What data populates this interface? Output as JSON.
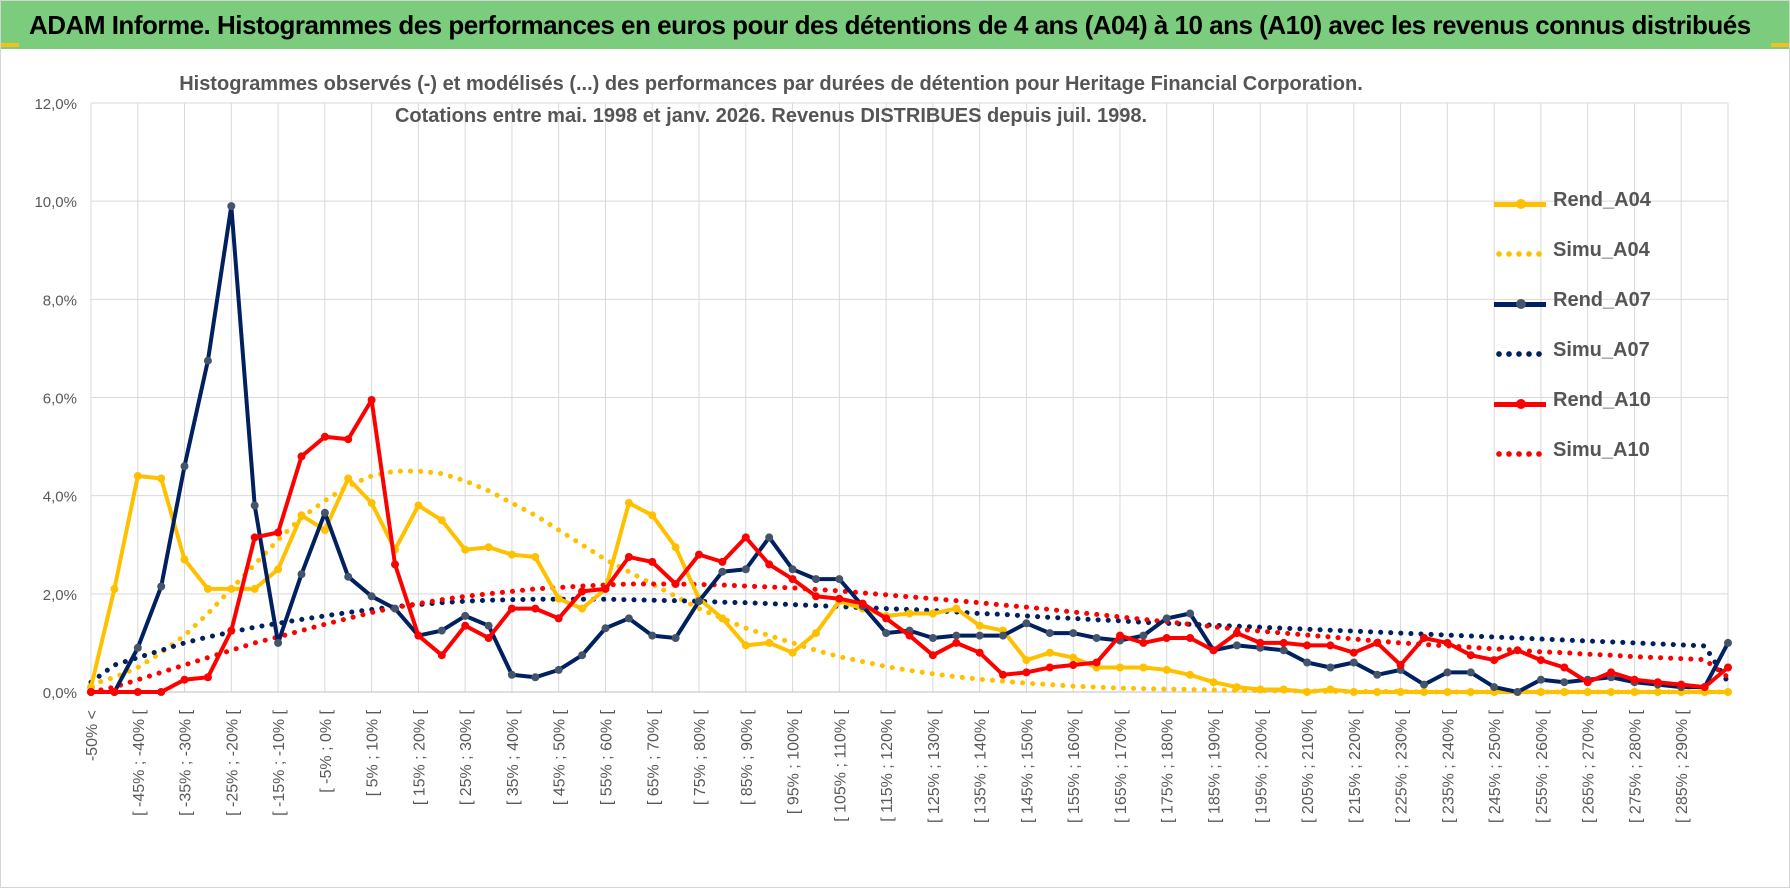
{
  "header": {
    "title": "ADAM Informe. Histogrammes des performances en euros pour des détentions de 4 ans (A04) à 10 ans (A10) avec les revenus connus distribués"
  },
  "chart_data": {
    "type": "line",
    "title_line1": "Histogrammes observés (-) et modélisés (...) des performances par durées de détention pour Heritage Financial Corporation.",
    "title_line2": "Cotations entre mai. 1998 et janv. 2026. Revenus DISTRIBUES depuis juil. 1998.",
    "ylim": [
      0,
      12
    ],
    "yticks": [
      "0,0%",
      "2,0%",
      "4,0%",
      "6,0%",
      "8,0%",
      "10,0%",
      "12,0%"
    ],
    "grid": true,
    "legend_position": "right",
    "x_labels": [
      "-50% <",
      "[ -45% ; -40% [",
      "[ -35% ; -30% [",
      "[ -25% ; -20% [",
      "[ -15% ; -10% [",
      "[ -5% ; 0% [",
      "[ 5% ; 10% [",
      "[ 15% ; 20% [",
      "[ 25% ; 30% [",
      "[ 35% ; 40% [",
      "[ 45% ; 50% [",
      "[ 55% ; 60% [",
      "[ 65% ; 70% [",
      "[ 75% ; 80% [",
      "[ 85% ; 90% [",
      "[ 95% ; 100% [",
      "[ 105% ; 110% [",
      "[ 115% ; 120% [",
      "[ 125% ; 130% [",
      "[ 135% ; 140% [",
      "[ 145% ; 150% [",
      "[ 155% ; 160% [",
      "[ 165% ; 170% [",
      "[ 175% ; 180% [",
      "[ 185% ; 190% [",
      "[ 195% ; 200% [",
      "[ 205% ; 210% [",
      "[ 215% ; 220% [",
      "[ 225% ; 230% [",
      "[ 235% ; 240% [",
      "[ 245% ; 250% [",
      "[ 255% ; 260% [",
      "[ 265% ; 270% [",
      "[ 275% ; 280% [",
      "[ 285% ; 290% ["
    ],
    "series": [
      {
        "name": "Rend_A04",
        "style": "solid",
        "color": "#ffc000",
        "values": [
          0.1,
          2.1,
          4.4,
          4.35,
          2.7,
          2.1,
          2.1,
          2.1,
          2.5,
          3.6,
          3.3,
          4.35,
          3.85,
          2.9,
          3.8,
          3.5,
          2.9,
          2.95,
          2.8,
          2.75,
          1.9,
          1.7,
          2.1,
          3.85,
          3.6,
          2.95,
          1.9,
          1.5,
          0.95,
          1.0,
          0.8,
          1.2,
          1.85,
          1.7,
          1.55,
          1.6,
          1.6,
          1.7,
          1.35,
          1.25,
          0.65,
          0.8,
          0.7,
          0.5,
          0.5,
          0.5,
          0.45,
          0.35,
          0.2,
          0.1,
          0.05,
          0.05,
          0.0,
          0.05,
          0.0,
          0.0,
          0.0,
          0.0,
          0.0,
          0.0,
          0.0,
          0.0,
          0.0,
          0.0,
          0.0,
          0.0,
          0.0,
          0.0,
          0.0,
          0.0,
          0.0
        ]
      },
      {
        "name": "Simu_A04",
        "style": "dotted",
        "color": "#ffc000",
        "values": [
          0.15,
          0.3,
          0.5,
          0.8,
          1.15,
          1.6,
          2.1,
          2.6,
          3.1,
          3.55,
          3.9,
          4.2,
          4.4,
          4.5,
          4.5,
          4.45,
          4.3,
          4.1,
          3.85,
          3.6,
          3.3,
          3.0,
          2.7,
          2.45,
          2.2,
          1.95,
          1.7,
          1.5,
          1.3,
          1.15,
          1.0,
          0.85,
          0.72,
          0.62,
          0.52,
          0.44,
          0.37,
          0.31,
          0.26,
          0.22,
          0.18,
          0.15,
          0.12,
          0.1,
          0.08,
          0.07,
          0.06,
          0.05,
          0.04,
          0.03,
          0.03,
          0.02,
          0.02,
          0.01,
          0.01,
          0.01,
          0.01,
          0.0,
          0.0,
          0.0,
          0.0,
          0.0,
          0.0,
          0.0,
          0.0,
          0.0,
          0.0,
          0.0,
          0.0,
          0.0,
          0.0
        ]
      },
      {
        "name": "Rend_A07",
        "style": "solid",
        "color": "#002060",
        "values": [
          0.0,
          0.0,
          0.9,
          2.15,
          4.6,
          6.75,
          9.9,
          3.8,
          1.0,
          2.4,
          3.65,
          2.35,
          1.95,
          1.7,
          1.15,
          1.25,
          1.55,
          1.35,
          0.35,
          0.3,
          0.45,
          0.75,
          1.3,
          1.5,
          1.15,
          1.1,
          1.85,
          2.45,
          2.5,
          3.15,
          2.5,
          2.3,
          2.3,
          1.75,
          1.2,
          1.25,
          1.1,
          1.15,
          1.15,
          1.15,
          1.4,
          1.2,
          1.2,
          1.1,
          1.05,
          1.15,
          1.5,
          1.6,
          0.85,
          0.95,
          0.9,
          0.85,
          0.6,
          0.5,
          0.6,
          0.35,
          0.45,
          0.15,
          0.4,
          0.4,
          0.1,
          0.0,
          0.25,
          0.2,
          0.25,
          0.3,
          0.2,
          0.15,
          0.1,
          0.1,
          1.0
        ]
      },
      {
        "name": "Simu_A07",
        "style": "dotted",
        "color": "#002060",
        "values": [
          0.2,
          0.55,
          0.7,
          0.85,
          1.0,
          1.12,
          1.22,
          1.32,
          1.4,
          1.48,
          1.55,
          1.62,
          1.68,
          1.74,
          1.78,
          1.82,
          1.85,
          1.87,
          1.88,
          1.89,
          1.89,
          1.89,
          1.89,
          1.88,
          1.87,
          1.86,
          1.85,
          1.83,
          1.82,
          1.8,
          1.78,
          1.76,
          1.74,
          1.72,
          1.7,
          1.68,
          1.66,
          1.63,
          1.6,
          1.58,
          1.55,
          1.52,
          1.5,
          1.47,
          1.45,
          1.42,
          1.4,
          1.38,
          1.36,
          1.34,
          1.32,
          1.3,
          1.28,
          1.26,
          1.24,
          1.22,
          1.2,
          1.18,
          1.16,
          1.14,
          1.12,
          1.1,
          1.08,
          1.06,
          1.04,
          1.02,
          1.0,
          0.98,
          0.96,
          0.94,
          0.2
        ]
      },
      {
        "name": "Rend_A10",
        "style": "solid",
        "color": "#ff0000",
        "values": [
          0.0,
          0.0,
          0.0,
          0.0,
          0.25,
          0.3,
          1.25,
          3.15,
          3.25,
          4.8,
          5.2,
          5.15,
          5.95,
          2.6,
          1.15,
          0.75,
          1.35,
          1.1,
          1.7,
          1.7,
          1.5,
          2.05,
          2.1,
          2.75,
          2.65,
          2.2,
          2.8,
          2.65,
          3.15,
          2.6,
          2.3,
          1.95,
          1.9,
          1.8,
          1.5,
          1.15,
          0.75,
          1.0,
          0.8,
          0.35,
          0.4,
          0.5,
          0.55,
          0.6,
          1.15,
          1.0,
          1.1,
          1.1,
          0.85,
          1.2,
          1.0,
          1.0,
          0.95,
          0.95,
          0.8,
          1.0,
          0.55,
          1.1,
          1.0,
          0.75,
          0.65,
          0.85,
          0.65,
          0.5,
          0.2,
          0.4,
          0.25,
          0.2,
          0.15,
          0.1,
          0.5
        ]
      },
      {
        "name": "Simu_A10",
        "style": "dotted",
        "color": "#ff0000",
        "values": [
          0.0,
          0.1,
          0.25,
          0.4,
          0.55,
          0.7,
          0.85,
          1.0,
          1.12,
          1.25,
          1.38,
          1.5,
          1.62,
          1.72,
          1.8,
          1.88,
          1.95,
          2.0,
          2.05,
          2.1,
          2.13,
          2.16,
          2.18,
          2.2,
          2.2,
          2.2,
          2.19,
          2.18,
          2.16,
          2.14,
          2.12,
          2.09,
          2.06,
          2.02,
          1.98,
          1.94,
          1.9,
          1.86,
          1.82,
          1.77,
          1.73,
          1.68,
          1.63,
          1.58,
          1.53,
          1.48,
          1.43,
          1.38,
          1.33,
          1.28,
          1.24,
          1.2,
          1.16,
          1.12,
          1.08,
          1.04,
          1.0,
          0.97,
          0.94,
          0.91,
          0.88,
          0.85,
          0.82,
          0.8,
          0.77,
          0.75,
          0.72,
          0.7,
          0.68,
          0.66,
          0.3
        ]
      }
    ]
  }
}
